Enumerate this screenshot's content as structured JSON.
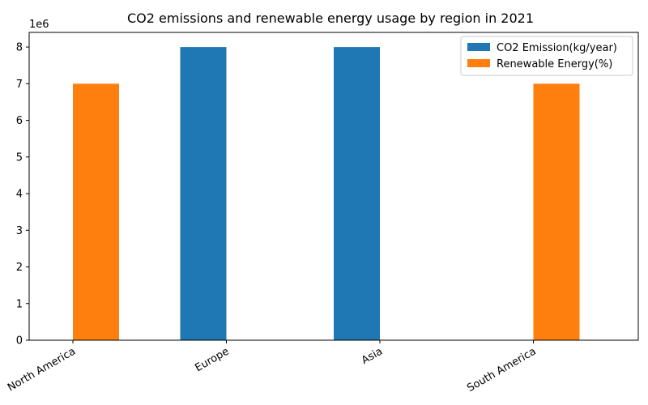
{
  "chart_data": {
    "type": "bar",
    "title": "CO2 emissions and renewable energy usage by region in 2021",
    "xlabel": "",
    "ylabel": "",
    "categories": [
      "North America",
      "Europe",
      "Asia",
      "South America"
    ],
    "series": [
      {
        "name": "CO2 Emission(kg/year)",
        "color": "#1f77b4",
        "values": [
          0,
          8000000,
          8000000,
          0
        ]
      },
      {
        "name": "Renewable Energy(%)",
        "color": "#ff7f0e",
        "values": [
          7000000,
          0,
          0,
          7000000
        ]
      }
    ],
    "ylim": [
      0,
      8400000
    ],
    "yticks": [
      0,
      1,
      2,
      3,
      4,
      5,
      6,
      7,
      8
    ],
    "y_offset_label": "1e6",
    "legend_position": "top-right",
    "grid": false
  }
}
